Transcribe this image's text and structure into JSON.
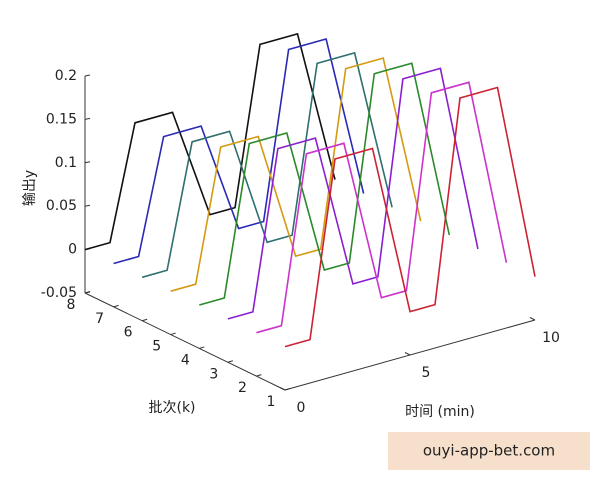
{
  "chart_data": {
    "type": "line3d",
    "zlabel": "输出y",
    "klabel": "批次(k)",
    "xlabel": "时间 (min)",
    "xlim": [
      0,
      10
    ],
    "xticks": [
      0,
      5,
      10
    ],
    "klim": [
      1,
      8
    ],
    "kticks": [
      1,
      2,
      3,
      4,
      5,
      6,
      7,
      8
    ],
    "zlim": [
      -0.05,
      0.2
    ],
    "zticks": [
      -0.05,
      0,
      0.05,
      0.1,
      0.15,
      0.2
    ],
    "x": [
      0,
      1,
      2,
      3.5,
      5,
      6,
      7,
      8.5,
      10
    ],
    "series": [
      {
        "batch": 1,
        "color": "#cc2233",
        "values": [
          0,
          0,
          0.2,
          0.2,
          0,
          0,
          0.23,
          0.23,
          0
        ]
      },
      {
        "batch": 2,
        "color": "#cc33cc",
        "values": [
          0,
          0,
          0.19,
          0.19,
          0,
          0,
          0.22,
          0.22,
          0
        ]
      },
      {
        "batch": 3,
        "color": "#8a1fcf",
        "values": [
          0,
          0,
          0.18,
          0.18,
          0,
          0,
          0.22,
          0.22,
          0
        ]
      },
      {
        "batch": 4,
        "color": "#2a8a2a",
        "values": [
          0,
          0,
          0.17,
          0.17,
          0,
          0,
          0.21,
          0.21,
          0
        ]
      },
      {
        "batch": 5,
        "color": "#d49a12",
        "values": [
          0,
          0,
          0.15,
          0.15,
          0,
          0,
          0.2,
          0.2,
          0
        ]
      },
      {
        "batch": 6,
        "color": "#2f6f6f",
        "values": [
          0,
          0,
          0.14,
          0.14,
          0,
          0,
          0.19,
          0.19,
          0
        ]
      },
      {
        "batch": 7,
        "color": "#2a2ab5",
        "values": [
          0,
          0,
          0.13,
          0.13,
          0,
          0,
          0.19,
          0.19,
          0
        ]
      },
      {
        "batch": 8,
        "color": "#111111",
        "values": [
          0,
          0,
          0.13,
          0.13,
          0,
          0,
          0.18,
          0.18,
          0
        ]
      }
    ]
  },
  "watermark": "ouyi-app-bet.com"
}
